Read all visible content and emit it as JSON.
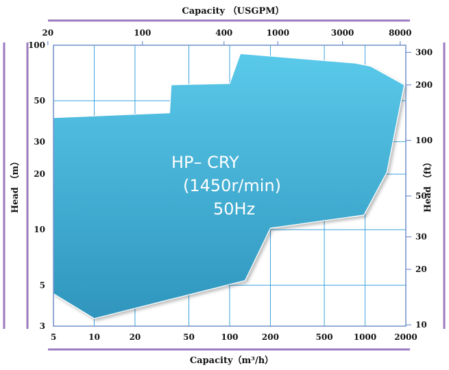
{
  "chart_data": {
    "type": "area",
    "title": "",
    "top_axis_label": "Capacity （USGPM）",
    "bottom_axis_label": "Capacity（m³/h）",
    "left_axis_label": "Head （m）",
    "right_axis_label": "Head （ft）",
    "x_scale": "log",
    "y_scale": "log",
    "xlim": [
      5,
      2000
    ],
    "ylim": [
      3,
      100
    ],
    "x_ticks": [
      "5",
      "10",
      "20",
      "50",
      "100",
      "200",
      "500",
      "1000",
      "2000"
    ],
    "x_tick_values": [
      5,
      10,
      20,
      50,
      100,
      200,
      500,
      1000,
      2000
    ],
    "y_ticks": [
      "3",
      "5",
      "10",
      "20",
      "30",
      "50",
      "100"
    ],
    "y_tick_values": [
      3,
      5,
      10,
      20,
      30,
      50,
      100
    ],
    "top_ticks": [
      "20",
      "100",
      "400",
      "1000",
      "3000",
      "8000"
    ],
    "top_tick_values": [
      20,
      100,
      400,
      1000,
      3000,
      8000
    ],
    "right_ticks": [
      "10",
      "20",
      "30",
      "50",
      "100",
      "200",
      "300"
    ],
    "right_tick_values": [
      10,
      20,
      30,
      50,
      100,
      200,
      300
    ],
    "region": {
      "label_lines": [
        "HP– CRY",
        "(1450r/min)",
        "50Hz"
      ],
      "boundary": [
        [
          5,
          4.5
        ],
        [
          10,
          3.3
        ],
        [
          130,
          5.3
        ],
        [
          200,
          10.2
        ],
        [
          980,
          12
        ],
        [
          1450,
          20.5
        ],
        [
          1950,
          61
        ],
        [
          1100,
          77
        ],
        [
          850,
          80
        ],
        [
          120,
          90
        ],
        [
          100,
          62
        ],
        [
          37,
          61
        ],
        [
          36,
          43
        ],
        [
          5,
          40.5
        ]
      ],
      "fill_top": "#5ac9ea",
      "fill_bottom": "#2f95bd"
    },
    "grid": true,
    "grid_color": "#3aa2dd",
    "frame_color": "#8d6bb5"
  }
}
